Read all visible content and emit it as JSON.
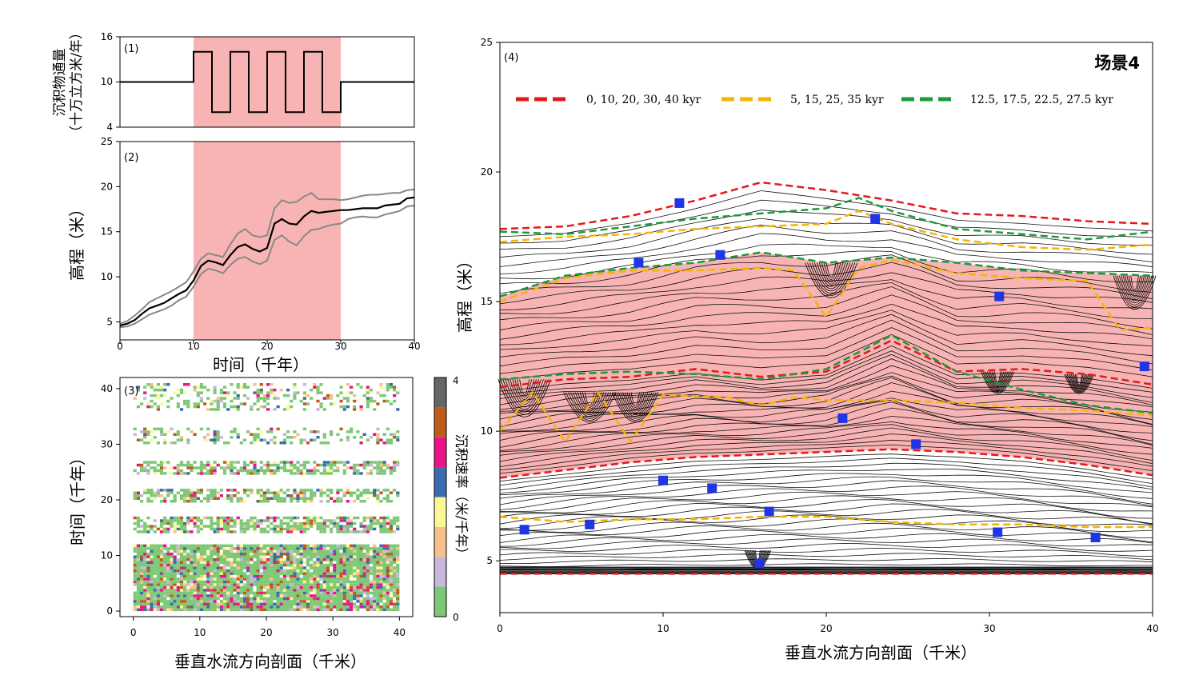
{
  "chart_data": [
    {
      "type": "line",
      "tag": "(1)",
      "ylabel_line1": "沉积物通量",
      "ylabel_line2": "（十万立方米/年）",
      "xlim": [
        0,
        40
      ],
      "ylim": [
        4,
        16
      ],
      "yticks": [
        "4",
        "10",
        "16"
      ],
      "shaded_x": [
        10,
        30
      ],
      "series": [
        {
          "x": [
            0,
            10,
            10,
            12.5,
            12.5,
            15,
            15,
            17.5,
            17.5,
            20,
            20,
            22.5,
            22.5,
            25,
            25,
            27.5,
            27.5,
            30,
            30,
            40
          ],
          "values": [
            10,
            10,
            14,
            14,
            6,
            6,
            14,
            14,
            6,
            6,
            14,
            14,
            6,
            6,
            14,
            14,
            6,
            6,
            10,
            10
          ]
        }
      ]
    },
    {
      "type": "line",
      "tag": "(2)",
      "ylabel": "高程（米）",
      "xlabel": "时间（千年）",
      "xlim": [
        0,
        40
      ],
      "ylim": [
        3,
        25
      ],
      "xticks": [
        "0",
        "10",
        "20",
        "30",
        "40"
      ],
      "yticks": [
        "5",
        "10",
        "15",
        "20",
        "25"
      ],
      "shaded_x": [
        10,
        30
      ],
      "series": [
        {
          "x": [
            0,
            1,
            2,
            3,
            4,
            5,
            6,
            7,
            8,
            9,
            10,
            11,
            12,
            13,
            14,
            15,
            16,
            17,
            18,
            19,
            20,
            21,
            22,
            23,
            24,
            25,
            26,
            27,
            28,
            29,
            30,
            31,
            32,
            33,
            34,
            35,
            36,
            37,
            38,
            39,
            40
          ],
          "values": [
            4.6,
            4.8,
            5.2,
            5.9,
            6.5,
            6.8,
            7.1,
            7.6,
            8.1,
            8.5,
            9.6,
            11.2,
            11.8,
            11.6,
            11.3,
            12.4,
            13.3,
            13.6,
            13.1,
            12.8,
            13.2,
            15.9,
            16.4,
            15.9,
            15.8,
            16.7,
            17.3,
            17.1,
            17.2,
            17.3,
            17.4,
            17.4,
            17.5,
            17.6,
            17.6,
            17.6,
            17.9,
            18.0,
            18.1,
            18.7,
            18.8
          ]
        },
        {
          "x": [
            0,
            1,
            2,
            3,
            4,
            5,
            6,
            7,
            8,
            9,
            10,
            11,
            12,
            13,
            14,
            15,
            16,
            17,
            18,
            19,
            20,
            21,
            22,
            23,
            24,
            25,
            26,
            27,
            28,
            29,
            30,
            31,
            32,
            33,
            34,
            35,
            36,
            37,
            38,
            39,
            40
          ],
          "values": [
            4.8,
            5.1,
            5.7,
            6.4,
            7.2,
            7.6,
            8.0,
            8.4,
            8.9,
            9.4,
            10.6,
            12.0,
            12.6,
            12.4,
            12.2,
            13.6,
            14.8,
            15.3,
            14.6,
            14.4,
            14.6,
            17.6,
            18.5,
            18.2,
            18.3,
            18.9,
            19.3,
            18.6,
            18.6,
            18.6,
            18.5,
            18.6,
            18.8,
            19.0,
            19.1,
            19.1,
            19.2,
            19.3,
            19.3,
            19.6,
            19.7
          ]
        },
        {
          "x": [
            0,
            1,
            2,
            3,
            4,
            5,
            6,
            7,
            8,
            9,
            10,
            11,
            12,
            13,
            14,
            15,
            16,
            17,
            18,
            19,
            20,
            21,
            22,
            23,
            24,
            25,
            26,
            27,
            28,
            29,
            30,
            31,
            32,
            33,
            34,
            35,
            36,
            37,
            38,
            39,
            40
          ],
          "values": [
            4.4,
            4.5,
            4.8,
            5.3,
            5.8,
            6.1,
            6.4,
            6.8,
            7.4,
            7.8,
            8.9,
            10.3,
            10.9,
            10.7,
            10.4,
            11.3,
            12.0,
            12.2,
            11.7,
            11.4,
            11.8,
            14.1,
            14.6,
            13.9,
            13.5,
            14.5,
            15.2,
            15.3,
            15.6,
            15.8,
            15.9,
            16.4,
            16.6,
            16.7,
            16.6,
            16.6,
            16.9,
            17.1,
            17.3,
            17.8,
            17.9
          ]
        }
      ]
    },
    {
      "type": "heatmap",
      "tag": "(3)",
      "xlabel": "垂直水流方向剖面（千米）",
      "ylabel": "时间（千年）",
      "xlim": [
        0,
        40
      ],
      "ylim": [
        0,
        40
      ],
      "xticks": [
        "0",
        "10",
        "20",
        "30",
        "40"
      ],
      "yticks": [
        "0",
        "10",
        "20",
        "30",
        "40"
      ],
      "colorbar": {
        "label": "沉积速率（米/千年）",
        "ticks": [
          "0",
          "4"
        ],
        "range": [
          0,
          4
        ],
        "colors": [
          "#7dc874",
          "#c7b7d8",
          "#f8c08b",
          "#fbf792",
          "#3b6cb1",
          "#ec128a",
          "#c05c1a",
          "#666666"
        ]
      },
      "bands": [
        {
          "t": [
            0,
            12
          ],
          "density": 0.95
        },
        {
          "t": [
            14,
            17
          ],
          "density": 0.7
        },
        {
          "t": [
            19.5,
            22
          ],
          "density": 0.6
        },
        {
          "t": [
            24.5,
            27
          ],
          "density": 0.6
        },
        {
          "t": [
            30,
            33
          ],
          "density": 0.35
        },
        {
          "t": [
            36,
            41
          ],
          "density": 0.3
        }
      ]
    },
    {
      "type": "line",
      "tag": "(4)",
      "scenario": "场景4",
      "xlabel": "垂直水流方向剖面（千米）",
      "ylabel": "高程（米）",
      "xlim": [
        0,
        40
      ],
      "ylim": [
        3,
        25
      ],
      "xticks": [
        "0",
        "10",
        "20",
        "30",
        "40"
      ],
      "yticks": [
        "5",
        "10",
        "15",
        "20",
        "25"
      ],
      "legend_position": "top",
      "legend": [
        {
          "label": "0, 10, 20, 30, 40 kyr",
          "color": "#e31a1c"
        },
        {
          "label": "5, 15, 25, 35 kyr",
          "color": "#f5b400"
        },
        {
          "label": "12.5, 17.5, 22.5, 27.5 kyr",
          "color": "#1a9a3a"
        }
      ],
      "series": [
        {
          "group": "red",
          "x": [
            0,
            4,
            8,
            12,
            16,
            20,
            24,
            28,
            32,
            36,
            40
          ],
          "values": [
            4.5,
            4.5,
            4.5,
            4.5,
            4.5,
            4.5,
            4.5,
            4.5,
            4.5,
            4.5,
            4.5
          ]
        },
        {
          "group": "red",
          "x": [
            0,
            4,
            8,
            12,
            16,
            20,
            24,
            28,
            32,
            36,
            40
          ],
          "values": [
            8.2,
            8.5,
            8.8,
            9.0,
            9.1,
            9.2,
            9.3,
            9.2,
            9.0,
            8.7,
            8.3
          ]
        },
        {
          "group": "red",
          "x": [
            0,
            4,
            8,
            12,
            16,
            20,
            24,
            28,
            32,
            36,
            40
          ],
          "values": [
            11.7,
            12.0,
            12.1,
            12.4,
            12.1,
            12.3,
            13.5,
            12.3,
            12.4,
            12.2,
            11.8
          ]
        },
        {
          "group": "red",
          "x": [
            0,
            4,
            8,
            12,
            16,
            20,
            24,
            28,
            32,
            36,
            40
          ],
          "values": [
            17.8,
            17.9,
            18.3,
            18.9,
            19.6,
            19.3,
            18.9,
            18.4,
            18.3,
            18.1,
            18.0
          ]
        },
        {
          "group": "orange",
          "x": [
            0,
            4,
            8,
            12,
            16,
            20,
            24,
            28,
            32,
            36,
            40
          ],
          "values": [
            6.7,
            6.5,
            6.6,
            6.6,
            6.7,
            6.7,
            6.5,
            6.4,
            6.4,
            6.3,
            6.3
          ]
        },
        {
          "group": "orange",
          "x": [
            0,
            2,
            4,
            6,
            8,
            10,
            14,
            16,
            18,
            20,
            24,
            28,
            32,
            36,
            40
          ],
          "values": [
            10.0,
            11.5,
            9.6,
            11.5,
            9.6,
            11.4,
            11.3,
            11.0,
            11.3,
            11.2,
            11.2,
            11.1,
            10.9,
            10.8,
            10.6
          ]
        },
        {
          "group": "orange",
          "x": [
            0,
            4,
            8,
            12,
            16,
            18,
            20,
            22,
            24,
            28,
            32,
            36,
            38,
            40
          ],
          "values": [
            15.0,
            15.9,
            16.2,
            16.2,
            16.3,
            16.2,
            14.4,
            16.3,
            16.6,
            16.1,
            15.9,
            15.8,
            13.9,
            14.0
          ]
        },
        {
          "group": "orange",
          "x": [
            0,
            4,
            8,
            12,
            16,
            20,
            22,
            24,
            28,
            32,
            36,
            40
          ],
          "values": [
            17.3,
            17.5,
            17.6,
            17.8,
            17.9,
            18.0,
            18.5,
            18.0,
            17.4,
            17.1,
            17.0,
            17.2
          ]
        },
        {
          "group": "green",
          "x": [
            0,
            4,
            8,
            12,
            16,
            20,
            24,
            28,
            32,
            36,
            40
          ],
          "values": [
            12.0,
            12.2,
            12.3,
            12.2,
            12.0,
            12.4,
            13.7,
            12.3,
            11.6,
            11.0,
            10.7
          ]
        },
        {
          "group": "green",
          "x": [
            0,
            4,
            8,
            12,
            16,
            20,
            24,
            28,
            32,
            36,
            40
          ],
          "values": [
            15.2,
            16.0,
            16.3,
            16.5,
            16.9,
            16.5,
            16.7,
            16.5,
            16.2,
            16.1,
            16.0
          ]
        },
        {
          "group": "green",
          "x": [
            0,
            4,
            8,
            12,
            16,
            20,
            22,
            24,
            28,
            32,
            36,
            40
          ],
          "values": [
            17.7,
            17.6,
            17.9,
            18.2,
            18.4,
            18.6,
            19.0,
            18.5,
            17.8,
            17.6,
            17.4,
            17.7
          ]
        }
      ]
    }
  ]
}
